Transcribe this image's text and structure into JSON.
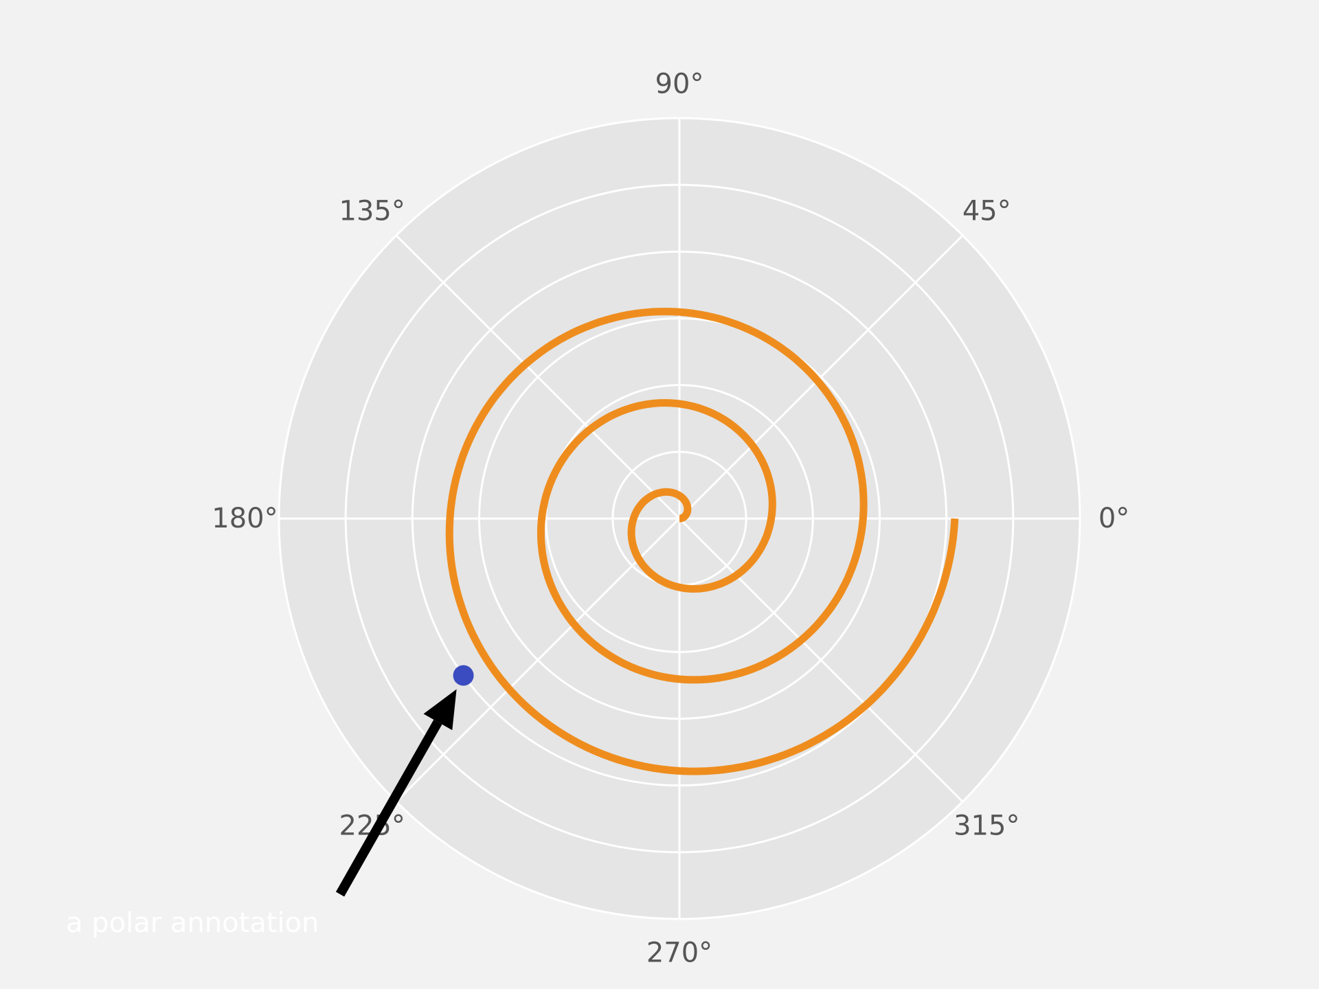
{
  "chart_data": {
    "type": "line",
    "projection": "polar",
    "title": "",
    "theta_tick_labels": [
      "0°",
      "45°",
      "90°",
      "135°",
      "180°",
      "225°",
      "270°",
      "315°"
    ],
    "theta_ticks_deg": [
      0,
      45,
      90,
      135,
      180,
      225,
      270,
      315
    ],
    "r_grid": [
      0.2,
      0.4,
      0.6,
      0.8,
      1.0,
      1.2,
      1.4
    ],
    "r_lim": [
      0,
      1.2
    ],
    "grid": true,
    "series": [
      {
        "kind": "spiral",
        "r_equals_theta_scale": 0.0796,
        "theta_range_deg": [
          0,
          1080
        ],
        "r": [
          0.0,
          0.1,
          0.2,
          0.3,
          0.4,
          0.5,
          0.6,
          0.7,
          0.8,
          0.9,
          1.0
        ],
        "theta_deg": [
          0,
          72,
          144,
          216,
          288,
          360,
          432,
          504,
          576,
          648,
          720
        ]
      }
    ],
    "highlight_point": {
      "r": 0.8,
      "theta_deg": 216
    },
    "annotation": {
      "text": "a polar annotation",
      "points_to": {
        "r": 0.8,
        "theta_deg": 216
      }
    },
    "colors": {
      "background": "#f2f2f2",
      "axes_face": "#e5e5e5",
      "grid": "#ffffff",
      "line": "#ee8d1e",
      "point": "#3b4cc0",
      "arrow": "#000000",
      "tick_label": "#555555",
      "annotation_text": "#ffffff"
    }
  }
}
